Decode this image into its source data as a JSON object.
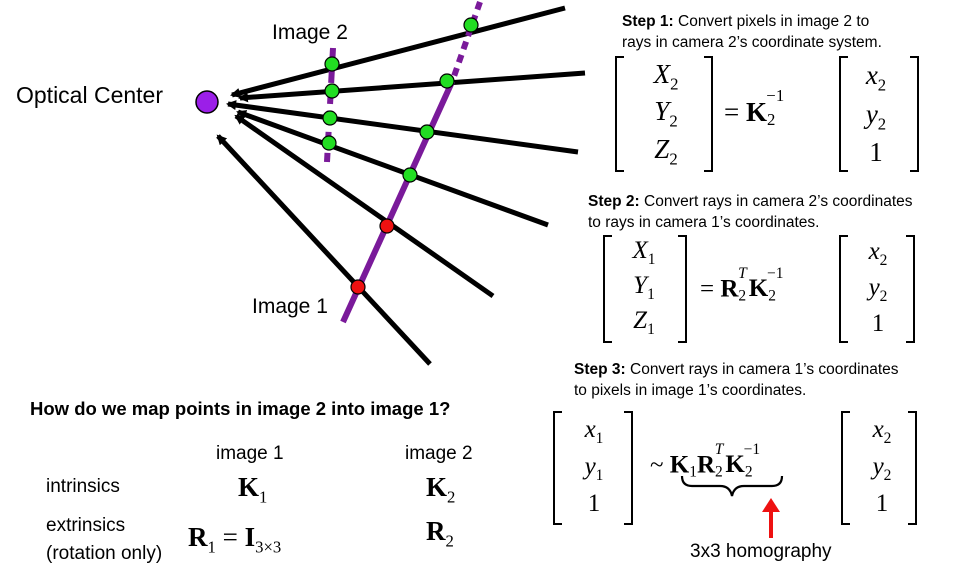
{
  "diagram": {
    "optical_center_label": "Optical Center",
    "image2_label": "Image 2",
    "image1_label": "Image 1",
    "colors": {
      "ray": "#000000",
      "image_plane": "#7a1a9a",
      "optical_center": "#9b1fe8",
      "point_green": "#22dd22",
      "point_red": "#ee1111",
      "arrow_annotation": "#ee1111"
    }
  },
  "steps": [
    {
      "title": "Step 1:",
      "text_line1": "Convert pixels in image 2 to",
      "text_line2": "rays in camera 2’s coordinate system."
    },
    {
      "title": "Step 2:",
      "text_line1": "Convert rays in camera 2’s coordinates",
      "text_line2": "to rays in camera 1’s coordinates."
    },
    {
      "title": "Step 3:",
      "text_line1": "Convert rays in camera 1’s coordinates",
      "text_line2": "to pixels in image 1’s coordinates."
    }
  ],
  "equations": {
    "eq1_lhs": [
      "X",
      "Y",
      "Z"
    ],
    "eq1_lhs_sub": "2",
    "eq1_rhs": [
      "x",
      "y",
      "1"
    ],
    "eq1_rhs_sub": "2",
    "eq2_lhs": [
      "X",
      "Y",
      "Z"
    ],
    "eq2_lhs_sub": "1",
    "eq3_lhs": [
      "x",
      "y",
      "1"
    ],
    "eq3_lhs_sub": "1",
    "homography_label": "3x3 homography"
  },
  "question": "How do we map points in image 2 into image 1?",
  "table": {
    "col1": "image 1",
    "col2": "image 2",
    "row1_label": "intrinsics",
    "row2_label_line1": "extrinsics",
    "row2_label_line2": "(rotation only)"
  }
}
